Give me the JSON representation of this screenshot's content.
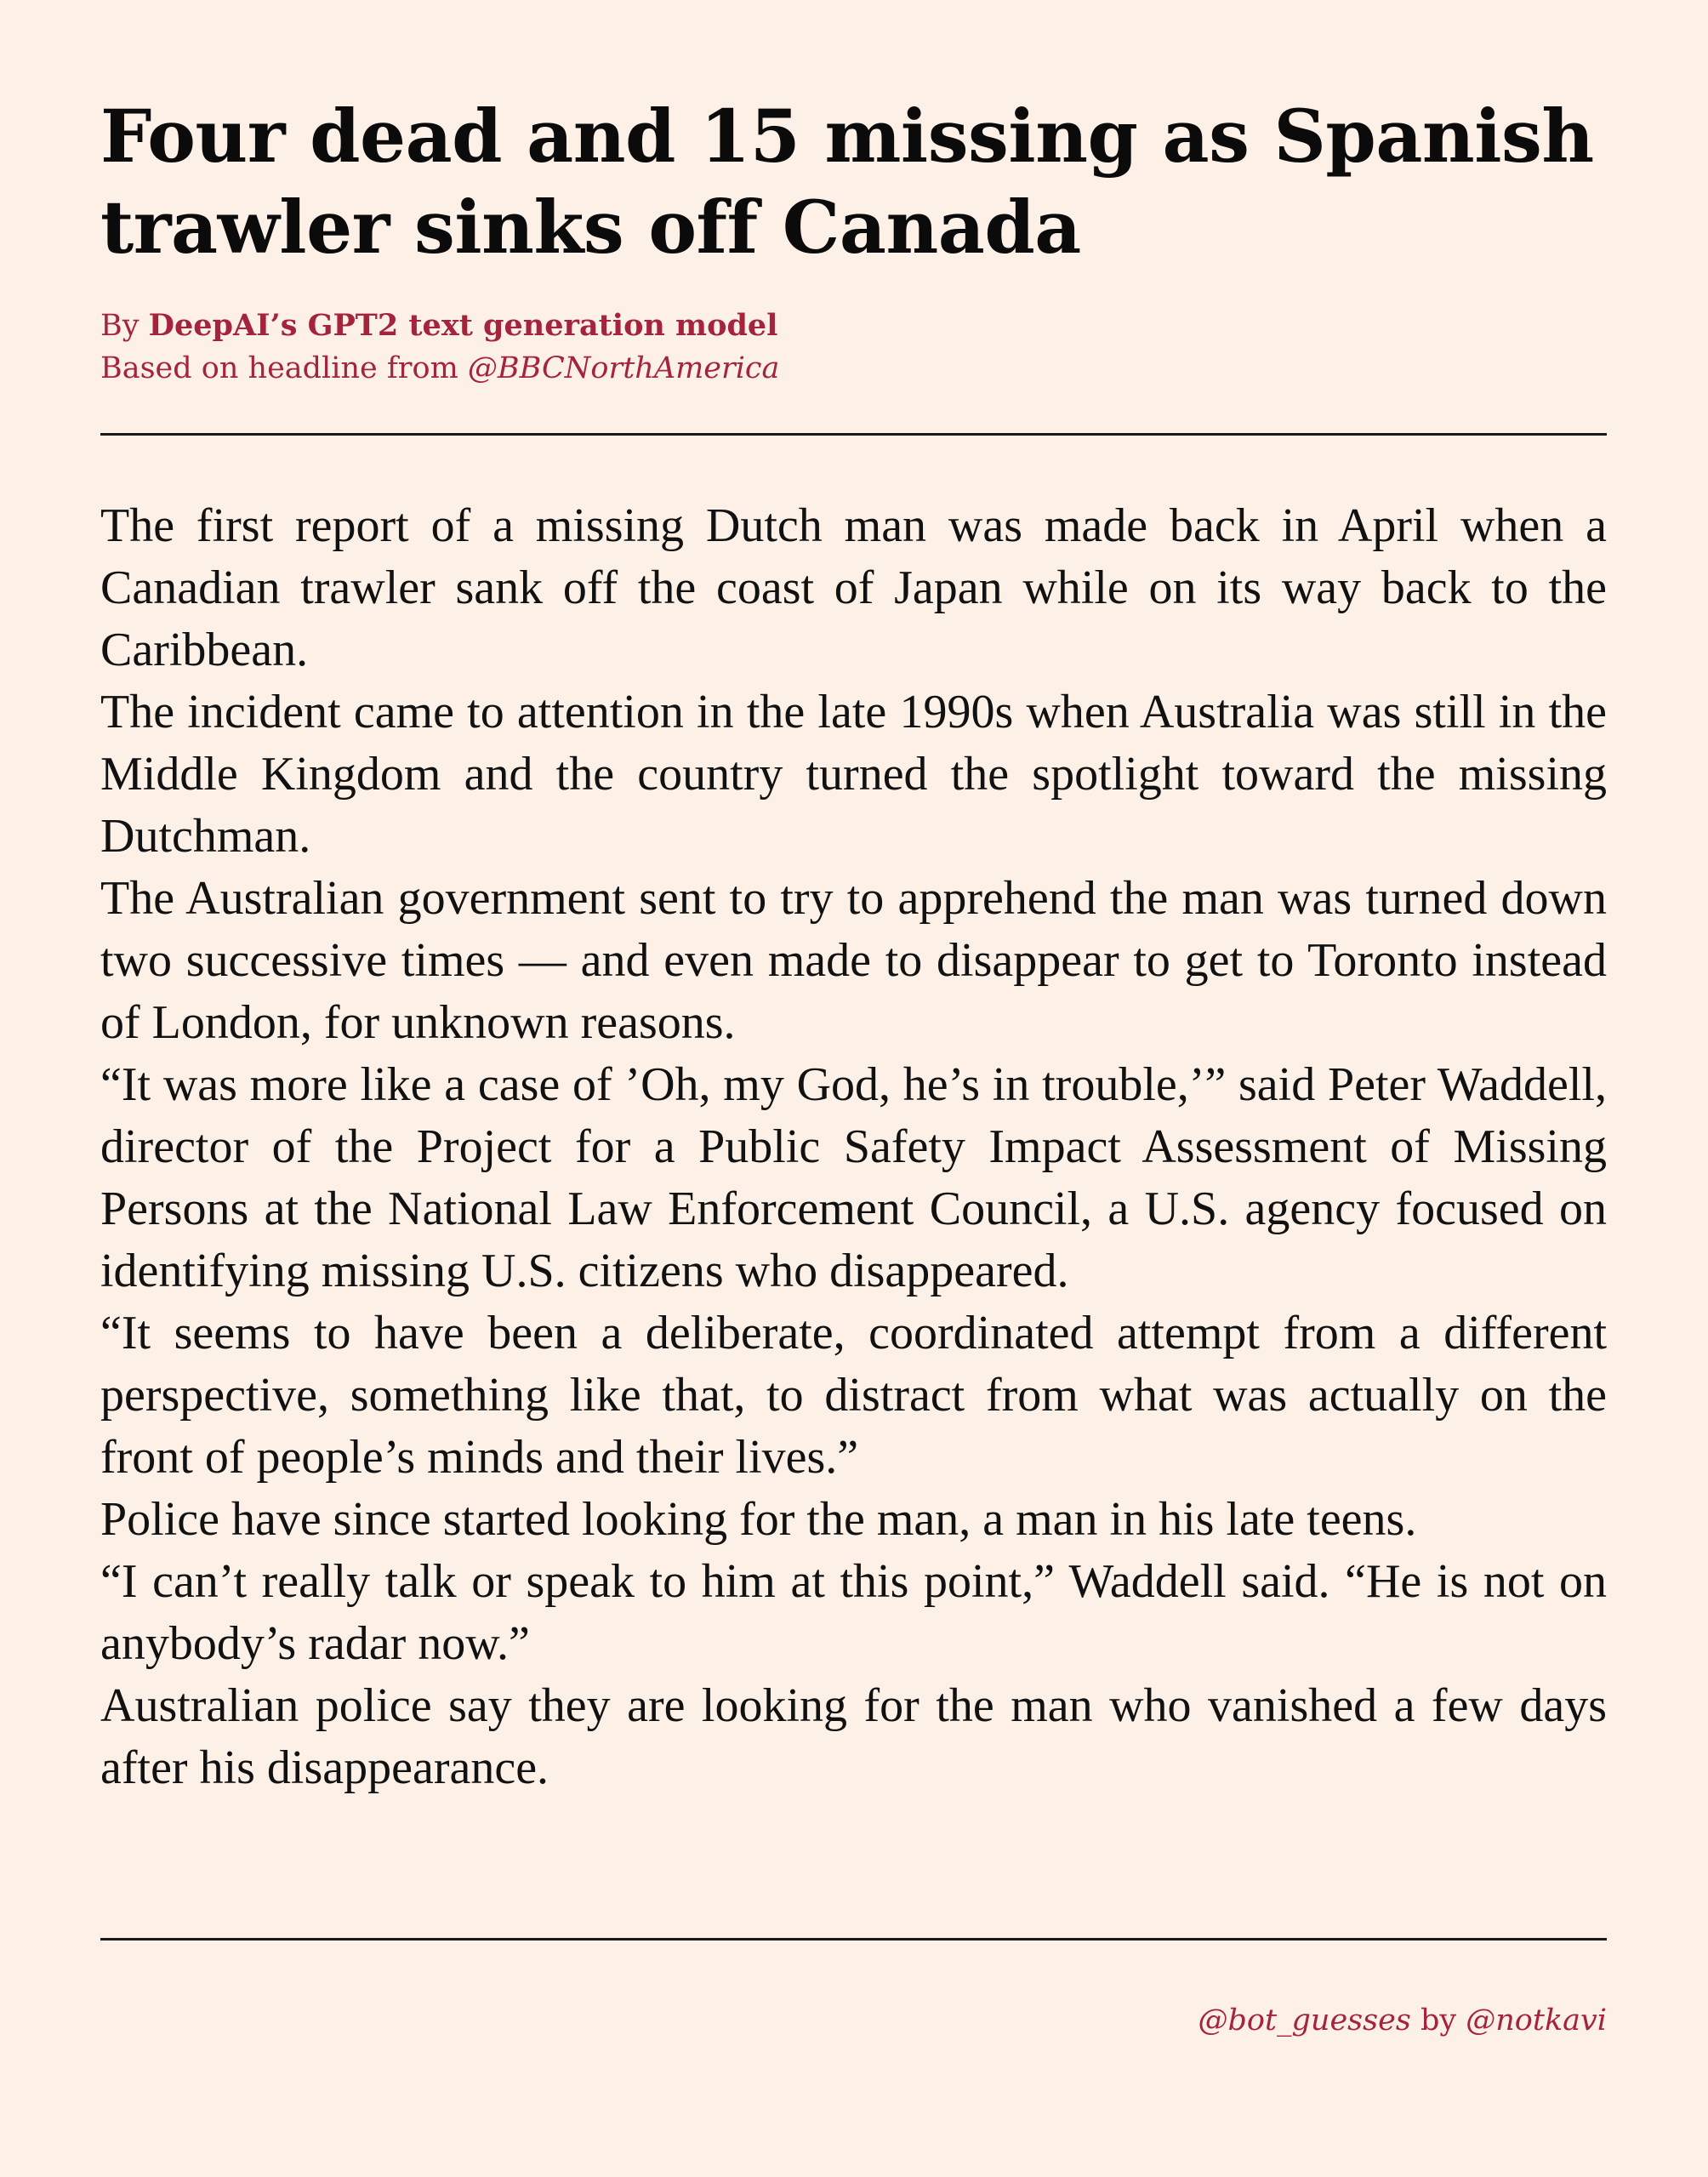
{
  "headline": "Four dead and 15 missing as Spanish trawler sinks off Canada",
  "byline": {
    "by_prefix": "By",
    "author": "DeepAI’s GPT2 text generation model",
    "source_prefix": "Based on headline from",
    "source_handle": "@BBCNorthAmerica"
  },
  "article": {
    "paragraphs": [
      "The first report of a missing Dutch man was made back in April when a Canadian trawler sank off the coast of Japan while on its way back to the Caribbean.",
      "The incident came to attention in the late 1990s when Australia was still in the Middle Kingdom and the country turned the spotlight toward the missing Dutchman.",
      "The Australian government sent to try to apprehend the man was turned down two successive times — and even made to disappear to get to Toronto instead of London, for unknown reasons.",
      "“It was more like a case of ’Oh, my God, he’s in trouble,’” said Peter Waddell, director of the Project for a Public Safety Impact Assessment of Missing Persons at the National Law Enforcement Council, a U.S. agency focused on identifying missing U.S. citizens who disappeared.",
      "“It seems to have been a deliberate, coordinated attempt from a different perspective, something like that, to distract from what was actually on the front of people’s minds and their lives.”",
      "Police have since started looking for the man, a man in his late teens.",
      "“I can’t really talk or speak to him at this point,” Waddell said. “He is not on anybody’s radar now.”",
      "Australian police say they are looking for the man who vanished a few days after his disappearance."
    ]
  },
  "credit": {
    "bot_handle": "@bot_guesses",
    "by_word": "by",
    "author_handle": "@notkavi"
  },
  "colors": {
    "background": "#fdf1e7",
    "accent": "#a4243b",
    "text": "#111111"
  }
}
